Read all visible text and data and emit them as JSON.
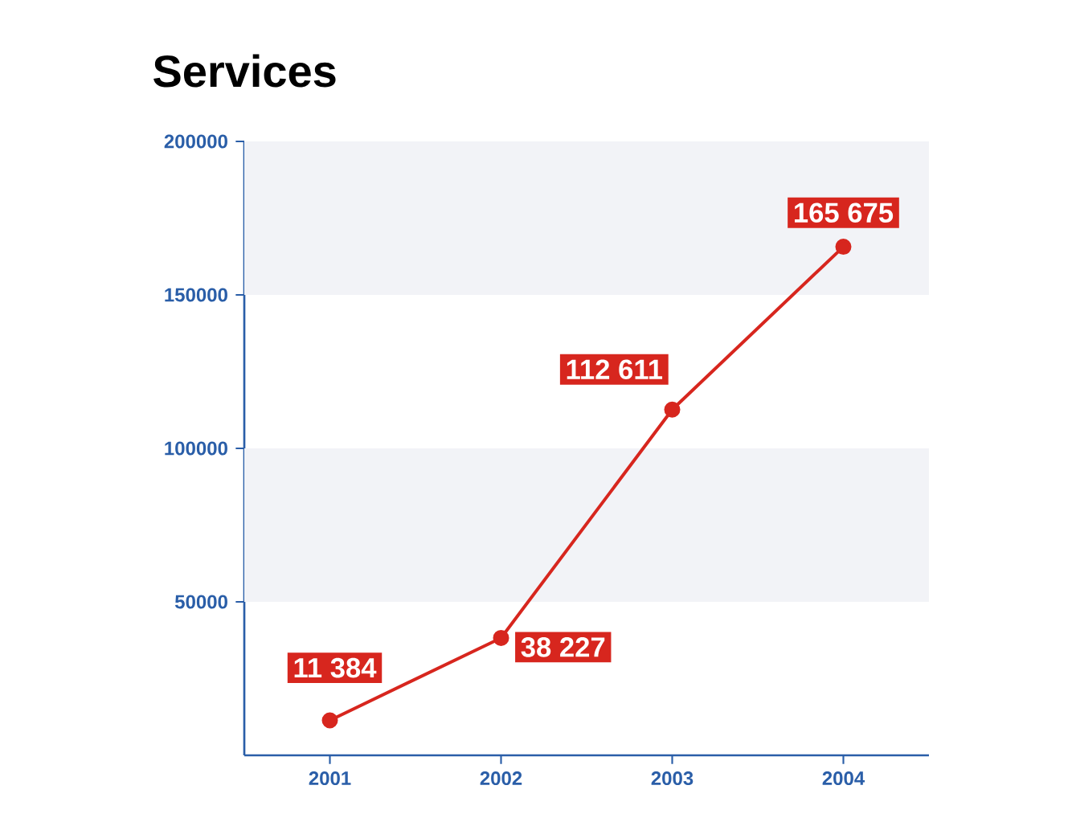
{
  "chart_data": {
    "type": "line",
    "title": "Services",
    "categories": [
      "2001",
      "2002",
      "2003",
      "2004"
    ],
    "series": [
      {
        "color": "#d7261e",
        "values": [
          11384,
          38227,
          112611,
          165675
        ],
        "value_labels": [
          "11 384",
          "38 227",
          "112 611",
          "165 675"
        ]
      }
    ],
    "ylim": [
      0,
      200000
    ],
    "yticks": [
      50000,
      100000,
      150000,
      200000
    ],
    "bands": [
      {
        "axis": "y",
        "from": 50000,
        "to": 100000,
        "color": "#f2f3f7"
      },
      {
        "axis": "y",
        "from": 150000,
        "to": 200000,
        "color": "#f2f3f7"
      }
    ],
    "marker": "circle",
    "line_style": "solid",
    "grid": false
  }
}
